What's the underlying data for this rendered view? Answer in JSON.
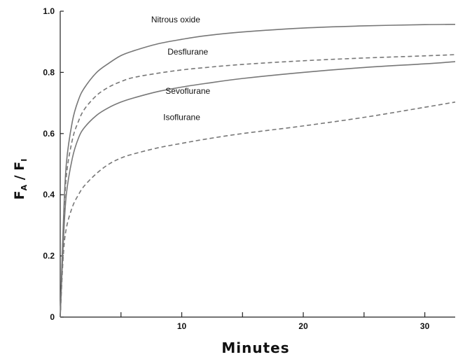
{
  "chart_data": {
    "type": "line",
    "title": "",
    "xlabel": "Minutes",
    "ylabel": {
      "prefix_1": "F",
      "sub_1": "A",
      "separator": " / ",
      "prefix_2": "F",
      "sub_2": "I"
    },
    "xlim": [
      0,
      32.5
    ],
    "ylim": [
      0,
      1.0
    ],
    "x_ticks": [
      10,
      20,
      30
    ],
    "x_minor_ticks": [
      5,
      15,
      25
    ],
    "y_ticks": [
      {
        "value": 0,
        "label": "0"
      },
      {
        "value": 0.2,
        "label": "0.2"
      },
      {
        "value": 0.4,
        "label": "0.4"
      },
      {
        "value": 0.6,
        "label": "0.6"
      },
      {
        "value": 0.8,
        "label": "0.8"
      },
      {
        "value": 1.0,
        "label": "1.0"
      }
    ],
    "grid": false,
    "series": [
      {
        "name": "Nitrous oxide",
        "style": "solid",
        "color": "#777777",
        "label_x": 9.5,
        "label_y": 0.963,
        "x": [
          0,
          0.25,
          0.5,
          1,
          1.5,
          2,
          3,
          4,
          5,
          6,
          8,
          10,
          12,
          15,
          20,
          25,
          30,
          32.5
        ],
        "y": [
          0,
          0.3,
          0.5,
          0.64,
          0.71,
          0.75,
          0.8,
          0.83,
          0.855,
          0.87,
          0.893,
          0.908,
          0.92,
          0.932,
          0.945,
          0.952,
          0.956,
          0.957
        ]
      },
      {
        "name": "Desflurane",
        "style": "dashed",
        "color": "#777777",
        "label_x": 10.5,
        "label_y": 0.858,
        "x": [
          0,
          0.25,
          0.5,
          1,
          1.5,
          2,
          3,
          4,
          5,
          6,
          8,
          10,
          12,
          15,
          20,
          25,
          30,
          32.5
        ],
        "y": [
          0,
          0.28,
          0.46,
          0.58,
          0.64,
          0.68,
          0.725,
          0.752,
          0.77,
          0.783,
          0.797,
          0.808,
          0.816,
          0.826,
          0.838,
          0.847,
          0.854,
          0.858
        ]
      },
      {
        "name": "Sevoflurane",
        "style": "solid",
        "color": "#777777",
        "label_x": 10.5,
        "label_y": 0.73,
        "x": [
          0,
          0.25,
          0.5,
          1,
          1.5,
          2,
          3,
          4,
          5,
          6,
          8,
          10,
          12,
          15,
          20,
          25,
          30,
          32.5
        ],
        "y": [
          0,
          0.24,
          0.4,
          0.52,
          0.585,
          0.62,
          0.66,
          0.685,
          0.703,
          0.716,
          0.737,
          0.752,
          0.764,
          0.78,
          0.8,
          0.816,
          0.828,
          0.835
        ]
      },
      {
        "name": "Isoflurane",
        "style": "dashed",
        "color": "#777777",
        "label_x": 10,
        "label_y": 0.644,
        "x": [
          0,
          0.25,
          0.5,
          1,
          1.5,
          2,
          3,
          4,
          5,
          6,
          8,
          10,
          12,
          15,
          20,
          25,
          30,
          32.5
        ],
        "y": [
          0,
          0.2,
          0.29,
          0.36,
          0.4,
          0.43,
          0.47,
          0.5,
          0.52,
          0.533,
          0.553,
          0.568,
          0.582,
          0.6,
          0.625,
          0.653,
          0.686,
          0.703
        ]
      }
    ]
  }
}
